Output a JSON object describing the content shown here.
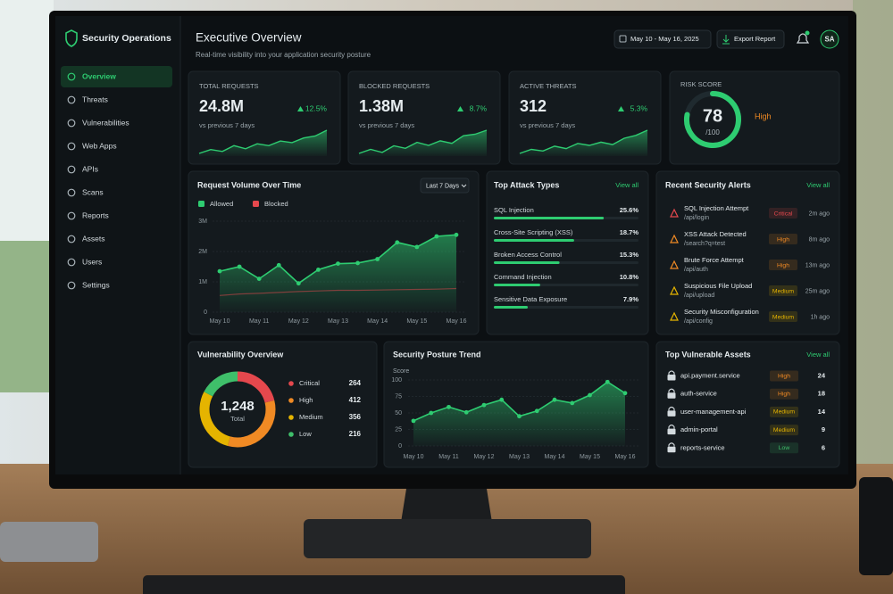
{
  "sidebar": {
    "brand": "Security Operations",
    "nav": [
      "Overview",
      "Threats",
      "Vulnerabilities",
      "Web Apps",
      "APIs",
      "Scans",
      "Reports",
      "Assets",
      "Users",
      "Settings"
    ]
  },
  "header": {
    "title": "Executive Overview",
    "subtitle": "Real-time visibility into your application security posture",
    "date_range": "May 10 - May 16, 2025",
    "export": "Export Report",
    "avatar": "SA"
  },
  "kpis": [
    {
      "label": "TOTAL REQUESTS",
      "value": "24.8M",
      "change": "12.5%",
      "note": "vs previous 7 days",
      "color": "#2ecc71",
      "spark": [
        3,
        4,
        3.5,
        5,
        4.2,
        5.5,
        5,
        6.2,
        5.8,
        7,
        7.5,
        9
      ]
    },
    {
      "label": "BLOCKED REQUESTS",
      "value": "1.38M",
      "change": "8.7%",
      "note": "vs previous 7 days",
      "color": "#2ecc71",
      "spark": [
        3,
        3.8,
        3.2,
        4.5,
        4,
        5.2,
        4.6,
        5.5,
        5,
        6.5,
        6.8,
        7.6
      ]
    },
    {
      "label": "ACTIVE THREATS",
      "value": "312",
      "change": "5.3%",
      "note": "vs previous 7 days",
      "color": "#2ecc71",
      "spark": [
        2,
        3,
        2.6,
        3.8,
        3.2,
        4.5,
        4,
        4.8,
        4.2,
        5.8,
        6.5,
        7.8
      ]
    }
  ],
  "risk": {
    "label": "RISK SCORE",
    "score": 78,
    "max": {
      "value": 100,
      "label": "/100"
    },
    "level": "High",
    "color": "#2ecc71",
    "level_color": "#f08a24"
  },
  "request_chart": {
    "type": "line",
    "title": "Request Volume Over Time",
    "range": "Last 7 Days",
    "categories": [
      "May 10",
      null,
      "May 11",
      null,
      "May 12",
      null,
      "May 13",
      null,
      "May 14",
      null,
      "May 15",
      null,
      "May 16"
    ],
    "series": [
      {
        "name": "Allowed",
        "color": "#2ecc71",
        "values": [
          1350000,
          1500000,
          1100000,
          1550000,
          950000,
          1400000,
          1600000,
          1620000,
          1750000,
          2300000,
          2150000,
          2500000,
          2550000
        ]
      },
      {
        "name": "Blocked",
        "color": "#e5484d",
        "values": [
          550000,
          600000,
          620000,
          650000,
          680000,
          700000,
          720000,
          720000,
          730000,
          740000,
          750000,
          760000,
          780000
        ]
      }
    ],
    "ylim": [
      0,
      3000000
    ],
    "yticks": [
      0,
      {
        "value": 1000000,
        "label": "1M"
      },
      {
        "value": 2000000,
        "label": "2M"
      },
      {
        "value": 3000000,
        "label": "3M"
      }
    ],
    "grid": true
  },
  "attack_types": {
    "title": "Top Attack Types",
    "view_all": "View all",
    "color": "#2ecc71",
    "items": [
      {
        "name": "SQL Injection",
        "value": 25.6,
        "label": "25.6%"
      },
      {
        "name": "Cross-Site Scripting (XSS)",
        "value": 18.7,
        "label": "18.7%"
      },
      {
        "name": "Broken Access Control",
        "value": 15.3,
        "label": "15.3%"
      },
      {
        "name": "Command Injection",
        "value": 10.8,
        "label": "10.8%"
      },
      {
        "name": "Sensitive Data Exposure",
        "value": 7.9,
        "label": "7.9%"
      }
    ]
  },
  "alerts": {
    "title": "Recent Security Alerts",
    "view_all": "View all",
    "items": [
      {
        "title": "SQL Injection Attempt",
        "path": "/api/login",
        "severity": "Critical",
        "time": "2m ago",
        "color": "#e5484d"
      },
      {
        "title": "XSS Attack Detected",
        "path": "/search?q=test",
        "severity": "High",
        "time": "8m ago",
        "color": "#f08a24"
      },
      {
        "title": "Brute Force Attempt",
        "path": "/api/auth",
        "severity": "High",
        "time": "13m ago",
        "color": "#f08a24"
      },
      {
        "title": "Suspicious File Upload",
        "path": "/api/upload",
        "severity": "Medium",
        "time": "25m ago",
        "color": "#e5b400"
      },
      {
        "title": "Security Misconfiguration",
        "path": "/api/config",
        "severity": "Medium",
        "time": "1h ago",
        "color": "#e5b400"
      }
    ]
  },
  "vulnerabilities": {
    "type": "pie",
    "title": "Vulnerability Overview",
    "total": "1,248",
    "total_label": "Total",
    "categories": [
      "Critical",
      "High",
      "Medium",
      "Low"
    ],
    "values": [
      264,
      412,
      356,
      216
    ],
    "colors": [
      "#e5484d",
      "#f08a24",
      "#e5b400",
      "#3fbf6a"
    ]
  },
  "posture_chart": {
    "type": "line",
    "title": "Security Posture Trend",
    "ylabel": "Score",
    "categories": [
      "May 10",
      null,
      "May 11",
      null,
      "May 12",
      null,
      "May 13",
      null,
      "May 14",
      null,
      "May 15",
      null,
      "May 16"
    ],
    "values": [
      38,
      50,
      59,
      51,
      62,
      70,
      45,
      53,
      70,
      65,
      77,
      97,
      80
    ],
    "color": "#2ecc71",
    "ylim": [
      0,
      100
    ],
    "yticks": [
      0,
      25,
      50,
      75,
      100
    ],
    "grid": true
  },
  "assets": {
    "title": "Top Vulnerable Assets",
    "view_all": "View all",
    "items": [
      {
        "name": "api.payment.service",
        "severity": "High",
        "count": "24",
        "color": "#f08a24"
      },
      {
        "name": "auth-service",
        "severity": "High",
        "count": "18",
        "color": "#f08a24"
      },
      {
        "name": "user-management-api",
        "severity": "Medium",
        "count": "14",
        "color": "#e5b400"
      },
      {
        "name": "admin-portal",
        "severity": "Medium",
        "count": "9",
        "color": "#e5b400"
      },
      {
        "name": "reports-service",
        "severity": "Low",
        "count": "6",
        "color": "#3fbf6a"
      }
    ]
  }
}
